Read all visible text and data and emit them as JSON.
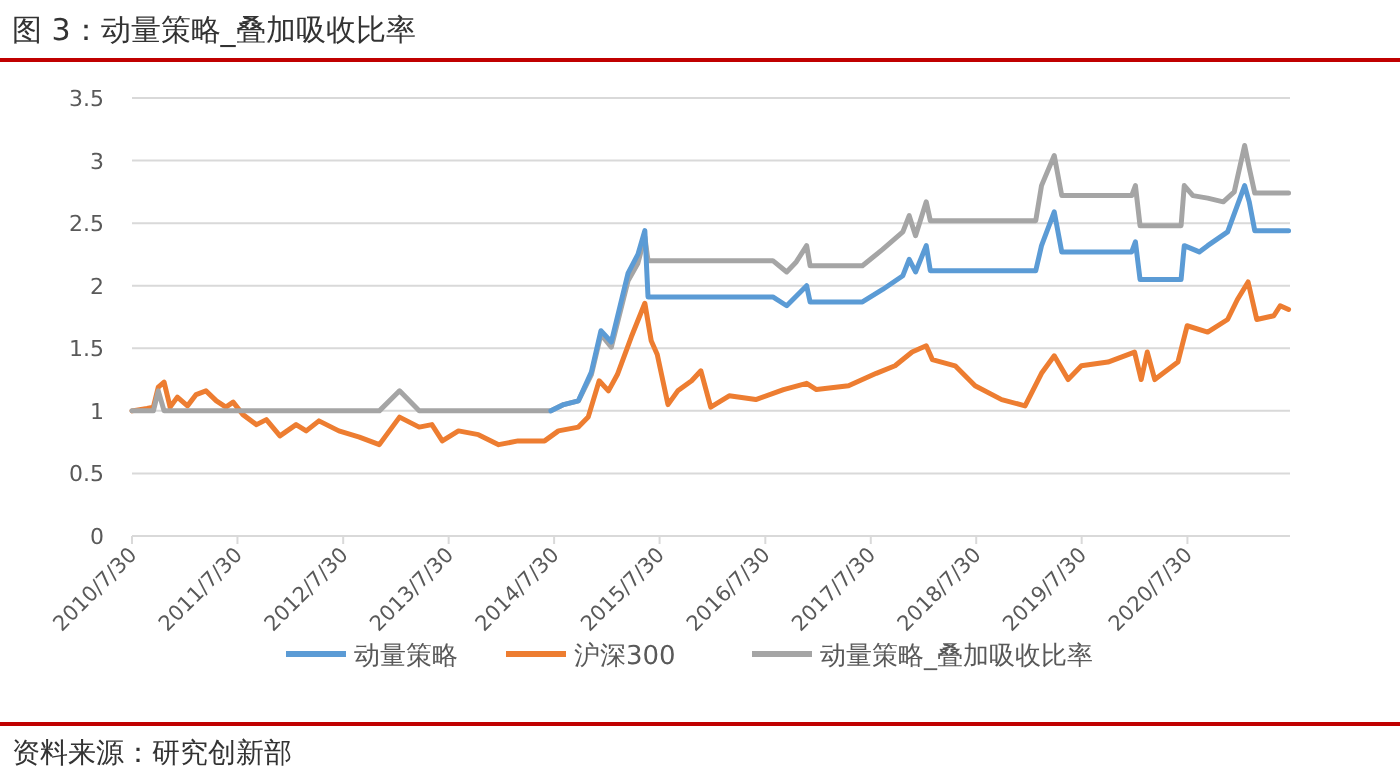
{
  "chart_data": {
    "type": "line",
    "title": "图 3：动量策略_叠加吸收比率",
    "annotations": [
      "资料来源：研究创新部"
    ],
    "xlim": [
      "2010-07-30",
      "2021-07-20"
    ],
    "ylim": [
      0,
      3.5
    ],
    "yticks": [
      0,
      0.5,
      1,
      1.5,
      2,
      2.5,
      3,
      3.5
    ],
    "xticks": [
      {
        "value": "2010-07-30",
        "label": "2010/7/30"
      },
      {
        "value": "2011-07-30",
        "label": "2011/7/30"
      },
      {
        "value": "2012-07-30",
        "label": "2012/7/30"
      },
      {
        "value": "2013-07-30",
        "label": "2013/7/30"
      },
      {
        "value": "2014-07-30",
        "label": "2014/7/30"
      },
      {
        "value": "2015-07-30",
        "label": "2015/7/30"
      },
      {
        "value": "2016-07-30",
        "label": "2016/7/30"
      },
      {
        "value": "2017-07-30",
        "label": "2017/7/30"
      },
      {
        "value": "2018-07-30",
        "label": "2018/7/30"
      },
      {
        "value": "2019-07-30",
        "label": "2019/7/30"
      },
      {
        "value": "2020-07-30",
        "label": "2020/7/30"
      }
    ],
    "grid": "y",
    "legend": "bottom",
    "series": [
      {
        "name": "沪深300",
        "color": "#ed7d31",
        "x": [
          "2010-07-30",
          "2010-09-20",
          "2010-10-12",
          "2010-10-29",
          "2010-11-18",
          "2010-12-09",
          "2011-01-03",
          "2011-02-07",
          "2011-03-09",
          "2011-04-12",
          "2011-05-18",
          "2011-06-20",
          "2011-07-15",
          "2011-08-18",
          "2011-10-04",
          "2011-11-07",
          "2011-12-24",
          "2012-02-18",
          "2012-03-24",
          "2012-05-07",
          "2012-07-15",
          "2012-09-24",
          "2012-12-02",
          "2013-02-10",
          "2013-04-19",
          "2013-06-02",
          "2013-07-08",
          "2013-09-02",
          "2013-11-10",
          "2014-01-19",
          "2014-03-27",
          "2014-06-27",
          "2014-08-14",
          "2014-10-22",
          "2014-11-25",
          "2015-01-02",
          "2015-02-03",
          "2015-03-06",
          "2015-04-23",
          "2015-06-09",
          "2015-07-01",
          "2015-07-22",
          "2015-08-28",
          "2015-10-01",
          "2015-11-18",
          "2015-12-20",
          "2016-01-23",
          "2016-03-27",
          "2016-06-27",
          "2016-10-01",
          "2016-12-20",
          "2017-01-23",
          "2017-05-14",
          "2017-08-18",
          "2017-10-22",
          "2017-12-20",
          "2018-02-07",
          "2018-02-28",
          "2018-05-18",
          "2018-07-26",
          "2018-10-26",
          "2019-01-15",
          "2019-03-13",
          "2019-04-26",
          "2019-06-13",
          "2019-07-29",
          "2019-10-29",
          "2020-01-29",
          "2020-02-21",
          "2020-03-13",
          "2020-04-08",
          "2020-06-27",
          "2020-07-29",
          "2020-10-08",
          "2020-12-16",
          "2021-01-19",
          "2021-02-25",
          "2021-03-27",
          "2021-05-25",
          "2021-06-16",
          "2021-07-15"
        ],
        "values": [
          1.0,
          1.02,
          1.03,
          1.19,
          1.23,
          1.03,
          1.11,
          1.04,
          1.13,
          1.16,
          1.08,
          1.03,
          1.07,
          0.97,
          0.89,
          0.93,
          0.8,
          0.89,
          0.84,
          0.92,
          0.84,
          0.79,
          0.73,
          0.95,
          0.87,
          0.89,
          0.76,
          0.84,
          0.81,
          0.73,
          0.76,
          0.76,
          0.84,
          0.87,
          0.95,
          1.24,
          1.16,
          1.29,
          1.59,
          1.86,
          1.56,
          1.45,
          1.05,
          1.16,
          1.24,
          1.32,
          1.03,
          1.12,
          1.09,
          1.17,
          1.22,
          1.17,
          1.2,
          1.3,
          1.36,
          1.47,
          1.52,
          1.41,
          1.36,
          1.2,
          1.09,
          1.04,
          1.3,
          1.44,
          1.25,
          1.36,
          1.39,
          1.47,
          1.25,
          1.47,
          1.25,
          1.39,
          1.68,
          1.63,
          1.73,
          1.89,
          2.03,
          1.73,
          1.76,
          1.84,
          1.81
        ]
      },
      {
        "name": "动量策略_叠加吸收比率",
        "color": "#a5a5a5",
        "x": [
          "2010-07-30",
          "2010-10-12",
          "2010-10-29",
          "2010-11-18",
          "2012-12-02",
          "2013-02-10",
          "2013-04-19",
          "2014-07-19",
          "2014-09-01",
          "2014-10-22",
          "2014-12-06",
          "2015-01-08",
          "2015-02-13",
          "2015-04-12",
          "2015-05-16",
          "2015-06-09",
          "2015-06-20",
          "2016-08-25",
          "2016-10-12",
          "2016-11-14",
          "2016-12-20",
          "2017-01-01",
          "2017-07-01",
          "2017-09-09",
          "2017-11-18",
          "2017-12-10",
          "2018-01-01",
          "2018-02-07",
          "2018-02-21",
          "2019-02-21",
          "2019-03-13",
          "2019-04-26",
          "2019-05-22",
          "2020-01-19",
          "2020-02-01",
          "2020-02-17",
          "2020-07-08",
          "2020-07-19",
          "2020-08-18",
          "2020-10-08",
          "2020-12-01",
          "2021-01-08",
          "2021-02-13",
          "2021-03-01",
          "2021-03-20",
          "2021-07-15"
        ],
        "values": [
          1.0,
          1.0,
          1.16,
          1.0,
          1.0,
          1.16,
          1.0,
          1.0,
          1.05,
          1.08,
          1.29,
          1.61,
          1.51,
          2.04,
          2.18,
          2.39,
          2.2,
          2.2,
          2.11,
          2.19,
          2.32,
          2.16,
          2.16,
          2.29,
          2.43,
          2.56,
          2.4,
          2.67,
          2.52,
          2.52,
          2.8,
          3.04,
          2.72,
          2.72,
          2.8,
          2.48,
          2.48,
          2.8,
          2.72,
          2.7,
          2.67,
          2.75,
          3.12,
          2.94,
          2.74,
          2.74
        ]
      },
      {
        "name": "动量策略",
        "color": "#5b9bd5",
        "x": [
          "2014-07-19",
          "2014-09-01",
          "2014-10-22",
          "2014-12-06",
          "2015-01-08",
          "2015-02-13",
          "2015-04-12",
          "2015-05-16",
          "2015-06-09",
          "2015-06-20",
          "2016-08-25",
          "2016-10-12",
          "2016-12-20",
          "2017-01-01",
          "2017-07-01",
          "2017-09-09",
          "2017-11-18",
          "2017-12-10",
          "2018-01-01",
          "2018-02-07",
          "2018-02-21",
          "2019-02-21",
          "2019-03-13",
          "2019-04-26",
          "2019-05-22",
          "2020-01-19",
          "2020-02-01",
          "2020-02-17",
          "2020-07-08",
          "2020-07-19",
          "2020-09-09",
          "2020-10-08",
          "2020-12-16",
          "2021-02-13",
          "2021-03-01",
          "2021-03-20",
          "2021-07-15"
        ],
        "values": [
          1.0,
          1.05,
          1.08,
          1.31,
          1.64,
          1.55,
          2.1,
          2.25,
          2.44,
          1.91,
          1.91,
          1.84,
          2.0,
          1.87,
          1.87,
          1.97,
          2.08,
          2.21,
          2.11,
          2.32,
          2.12,
          2.12,
          2.32,
          2.59,
          2.27,
          2.27,
          2.35,
          2.05,
          2.05,
          2.32,
          2.27,
          2.32,
          2.43,
          2.8,
          2.67,
          2.44,
          2.44
        ]
      }
    ]
  }
}
